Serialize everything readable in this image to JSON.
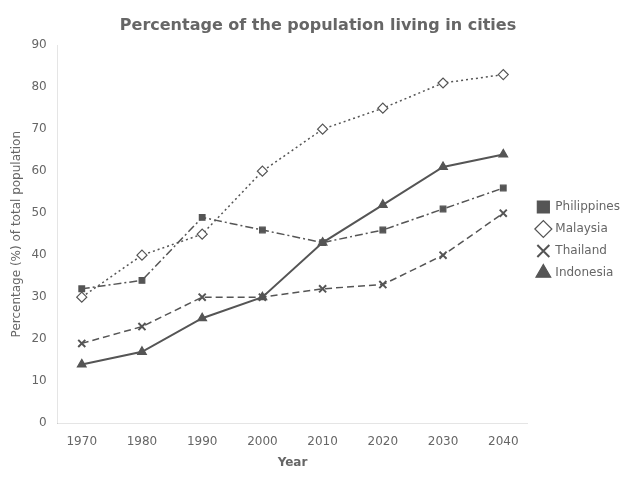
{
  "chart_data": {
    "type": "line",
    "title": "Percentage of the population living in cities",
    "xlabel": "Year",
    "ylabel": "Percentage (%) of total population",
    "x": [
      1970,
      1980,
      1990,
      2000,
      2010,
      2020,
      2030,
      2040
    ],
    "series": [
      {
        "name": "Philippines",
        "color": "#555555",
        "marker": "square",
        "line_style": "dashdot",
        "values": [
          32,
          34,
          49,
          46,
          43,
          46,
          51,
          56
        ]
      },
      {
        "name": "Malaysia",
        "color": "#555555",
        "marker": "diamond",
        "line_style": "dotted",
        "values": [
          30,
          40,
          45,
          60,
          70,
          75,
          81,
          83
        ]
      },
      {
        "name": "Thailand",
        "color": "#555555",
        "marker": "x",
        "line_style": "dashed",
        "values": [
          19,
          23,
          30,
          30,
          32,
          33,
          40,
          50
        ]
      },
      {
        "name": "Indonesia",
        "color": "#555555",
        "marker": "triangle",
        "line_style": "solid",
        "values": [
          14,
          17,
          25,
          30,
          43,
          52,
          61,
          64
        ]
      }
    ],
    "xlim": [
      1966,
      2044
    ],
    "xticks": [
      1970,
      1980,
      1990,
      2000,
      2010,
      2020,
      2030,
      2040
    ],
    "ylim": [
      0,
      90
    ],
    "yticks": [
      0,
      10,
      20,
      30,
      40,
      50,
      60,
      70,
      80,
      90
    ],
    "grid": false,
    "legend": "right"
  }
}
